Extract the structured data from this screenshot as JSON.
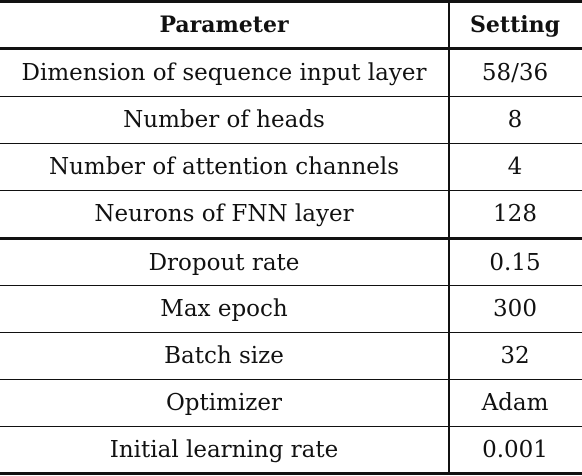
{
  "table": {
    "headers": {
      "parameter": "Parameter",
      "setting": "Setting"
    },
    "rows": [
      {
        "parameter": "Dimension of sequence input layer",
        "setting": "58/36"
      },
      {
        "parameter": "Number of heads",
        "setting": "8"
      },
      {
        "parameter": "Number of attention channels",
        "setting": "4"
      },
      {
        "parameter": "Neurons of FNN layer",
        "setting": "128"
      },
      {
        "parameter": "Dropout rate",
        "setting": "0.15"
      },
      {
        "parameter": "Max epoch",
        "setting": "300"
      },
      {
        "parameter": "Batch size",
        "setting": "32"
      },
      {
        "parameter": "Optimizer",
        "setting": "Adam"
      },
      {
        "parameter": "Initial learning rate",
        "setting": "0.001"
      }
    ]
  }
}
